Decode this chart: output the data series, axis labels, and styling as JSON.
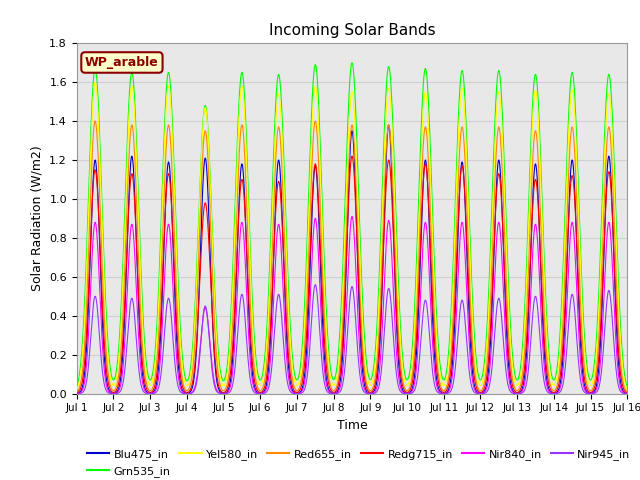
{
  "title": "Incoming Solar Bands",
  "xlabel": "Time",
  "ylabel": "Solar Radiation (W/m2)",
  "annotation": "WP_arable",
  "annotation_bbox": {
    "facecolor": "#FFFFCC",
    "edgecolor": "#8B0000",
    "linewidth": 1.5
  },
  "ylim": [
    0.0,
    1.8
  ],
  "yticks": [
    0.0,
    0.2,
    0.4,
    0.6,
    0.8,
    1.0,
    1.2,
    1.4,
    1.6,
    1.8
  ],
  "num_days": 15,
  "series": [
    {
      "name": "Blu475_in",
      "color": "#0000CC",
      "peak": 1.2,
      "sigma": 0.13
    },
    {
      "name": "Grn535_in",
      "color": "#00FF00",
      "peak": 1.67,
      "sigma": 0.18
    },
    {
      "name": "Yel580_in",
      "color": "#FFFF00",
      "peak": 1.6,
      "sigma": 0.17
    },
    {
      "name": "Red655_in",
      "color": "#FF8800",
      "peak": 1.4,
      "sigma": 0.155
    },
    {
      "name": "Redg715_in",
      "color": "#FF0000",
      "peak": 1.15,
      "sigma": 0.145
    },
    {
      "name": "Nir840_in",
      "color": "#FF00FF",
      "peak": 0.88,
      "sigma": 0.125
    },
    {
      "name": "Nir945_in",
      "color": "#9933FF",
      "peak": 0.5,
      "sigma": 0.115
    }
  ],
  "peak_variations": [
    [
      1.2,
      1.22,
      1.19,
      1.21,
      1.18,
      1.2,
      1.17,
      1.35,
      1.38,
      1.2,
      1.19,
      1.2,
      1.18,
      1.2,
      1.22
    ],
    [
      1.67,
      1.65,
      1.65,
      1.48,
      1.65,
      1.64,
      1.69,
      1.7,
      1.68,
      1.67,
      1.66,
      1.66,
      1.64,
      1.65,
      1.64
    ],
    [
      1.6,
      1.58,
      1.58,
      1.47,
      1.58,
      1.54,
      1.58,
      1.55,
      1.57,
      1.55,
      1.57,
      1.55,
      1.56,
      1.56,
      1.54
    ],
    [
      1.4,
      1.38,
      1.38,
      1.35,
      1.38,
      1.37,
      1.4,
      1.38,
      1.38,
      1.37,
      1.37,
      1.37,
      1.35,
      1.37,
      1.37
    ],
    [
      1.15,
      1.13,
      1.13,
      0.98,
      1.1,
      1.09,
      1.18,
      1.22,
      1.2,
      1.18,
      1.17,
      1.13,
      1.1,
      1.12,
      1.14
    ],
    [
      0.88,
      0.87,
      0.87,
      0.44,
      0.88,
      0.87,
      0.9,
      0.91,
      0.89,
      0.88,
      0.88,
      0.88,
      0.87,
      0.88,
      0.88
    ],
    [
      0.5,
      0.49,
      0.49,
      0.45,
      0.51,
      0.51,
      0.56,
      0.55,
      0.54,
      0.48,
      0.48,
      0.49,
      0.5,
      0.51,
      0.53
    ]
  ],
  "background_color": "#FFFFFF",
  "grid_color": "#D0D0D0",
  "plot_bg_color": "#E8E8E8"
}
